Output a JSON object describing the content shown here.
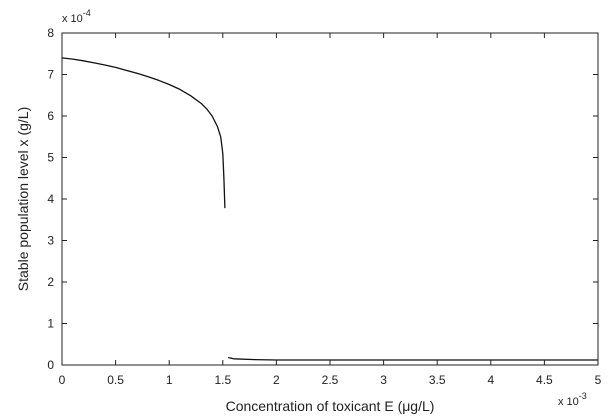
{
  "chart_data": {
    "type": "line",
    "xlabel": "Concentration of toxicant E (μg/L)",
    "ylabel": "Stable population level x (g/L)",
    "x_multiplier": "x 10",
    "x_multiplier_exp": "-3",
    "y_multiplier": "x 10",
    "y_multiplier_exp": "-4",
    "xlim": [
      0,
      5
    ],
    "ylim": [
      0,
      8
    ],
    "xticks": [
      "0",
      "0.5",
      "1",
      "1.5",
      "2",
      "2.5",
      "3",
      "3.5",
      "4",
      "4.5",
      "5"
    ],
    "yticks": [
      "0",
      "1",
      "2",
      "3",
      "4",
      "5",
      "6",
      "7",
      "8"
    ],
    "grid": false,
    "series": [
      {
        "x": [
          0,
          0.1,
          0.2,
          0.3,
          0.4,
          0.5,
          0.6,
          0.7,
          0.8,
          0.9,
          1.0,
          1.1,
          1.2,
          1.3,
          1.35,
          1.4,
          1.45,
          1.48,
          1.5,
          1.51,
          1.52
        ],
        "y": [
          7.4,
          7.37,
          7.33,
          7.28,
          7.23,
          7.17,
          7.1,
          7.03,
          6.95,
          6.86,
          6.76,
          6.64,
          6.49,
          6.3,
          6.17,
          6.0,
          5.75,
          5.5,
          5.1,
          4.5,
          3.78
        ]
      },
      {
        "x": [
          1.55,
          1.6,
          1.8,
          2.0,
          2.5,
          3.0,
          3.5,
          4.0,
          4.5,
          5.0
        ],
        "y": [
          0.18,
          0.15,
          0.13,
          0.12,
          0.12,
          0.12,
          0.12,
          0.12,
          0.12,
          0.12
        ]
      }
    ]
  }
}
